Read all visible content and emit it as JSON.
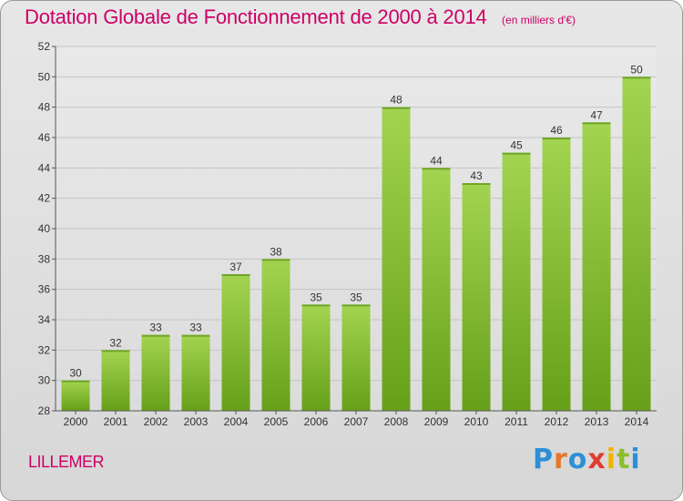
{
  "title": "Dotation Globale de Fonctionnement de 2000 à 2014",
  "unit_note": "(en milliers d'€)",
  "commune": "LILLEMER",
  "logo": {
    "text": "Proxiti",
    "letter_colors": [
      "#2e8fd6",
      "#e8772a",
      "#2e8fd6",
      "#e03c2f",
      "#f0b400",
      "#8bbf2c",
      "#2e8fd6"
    ]
  },
  "colors": {
    "title": "#cc0066",
    "bar_top": "#a3d451",
    "bar_bottom": "#66a01a",
    "grid": "#c4c4c4"
  },
  "chart_data": {
    "type": "bar",
    "title": "Dotation Globale de Fonctionnement de 2000 à 2014",
    "subtitle": "(en milliers d'€)",
    "xlabel": "",
    "ylabel": "",
    "categories": [
      "2000",
      "2001",
      "2002",
      "2003",
      "2004",
      "2005",
      "2006",
      "2007",
      "2008",
      "2009",
      "2010",
      "2011",
      "2012",
      "2013",
      "2014"
    ],
    "values": [
      30,
      32,
      33,
      33,
      37,
      38,
      35,
      35,
      48,
      44,
      43,
      45,
      46,
      47,
      50
    ],
    "data_labels": [
      "30",
      "32",
      "33",
      "33",
      "37",
      "38",
      "35",
      "35",
      "48",
      "44",
      "43",
      "45",
      "46",
      "47",
      "50"
    ],
    "ylim": [
      28,
      52
    ],
    "yticks": [
      28,
      30,
      32,
      34,
      36,
      38,
      40,
      42,
      44,
      46,
      48,
      50,
      52
    ],
    "grid": true,
    "legend": "none"
  }
}
